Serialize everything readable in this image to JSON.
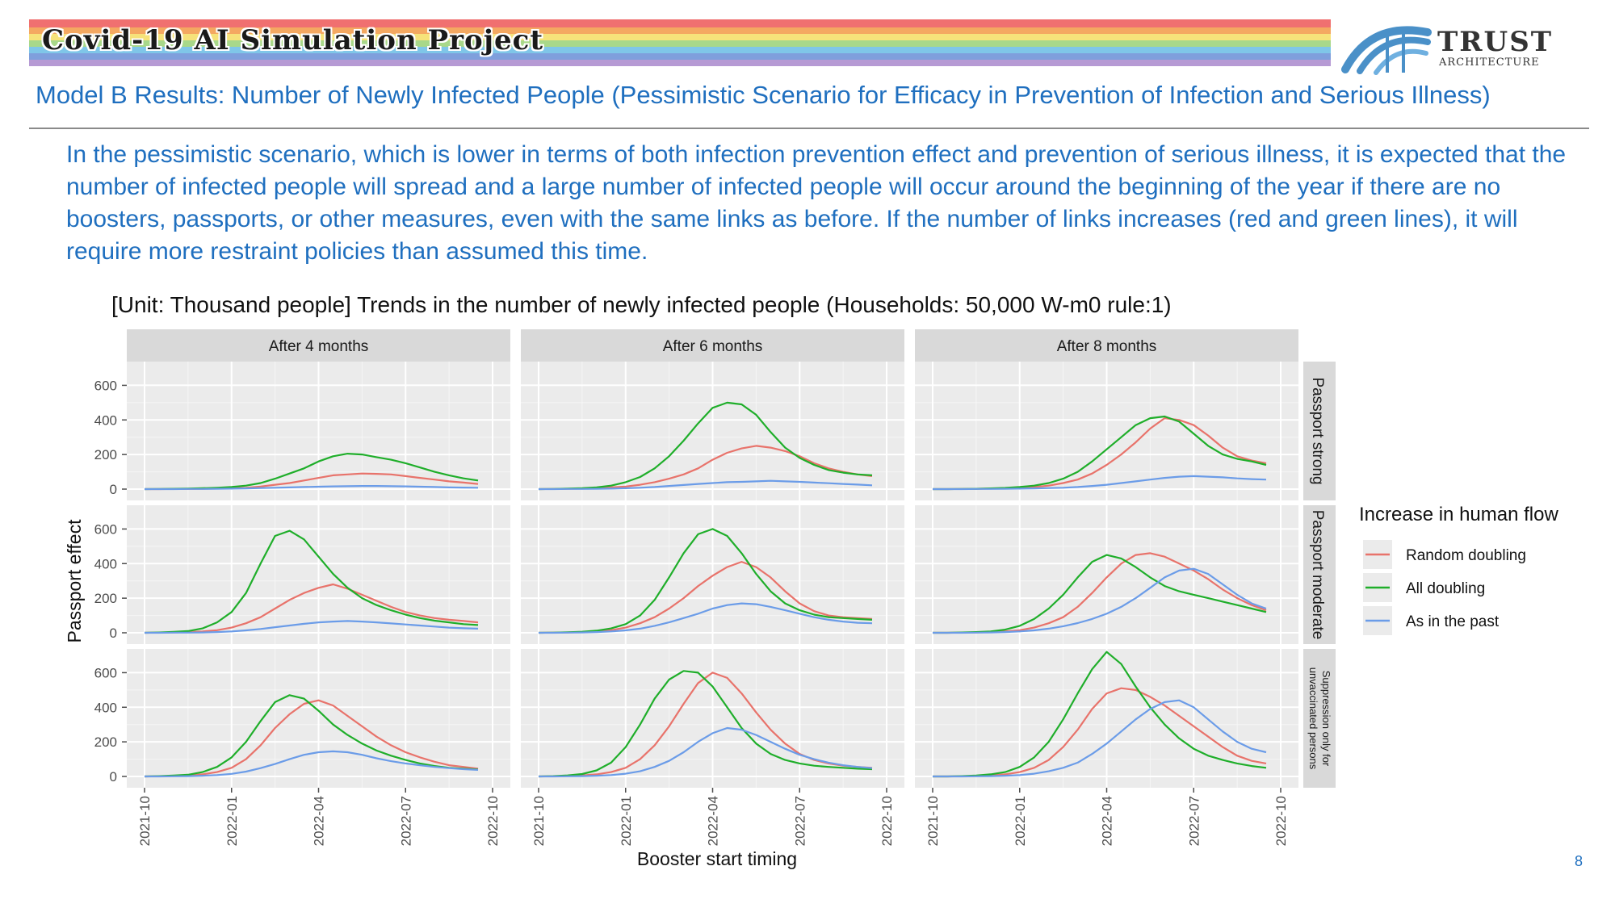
{
  "banner": {
    "title": "Covid-19 AI Simulation Project",
    "stripes": [
      "#f07070",
      "#f4a861",
      "#f6e27a",
      "#a8d88a",
      "#7fc6e8",
      "#7f9fdc",
      "#b69ad4"
    ]
  },
  "logo": {
    "word": "TRUST",
    "sub": "ARCHITECTURE",
    "icon": "trust-architecture-logo-icon",
    "color": "#4a90c8"
  },
  "slide_title": "Model B Results: Number of Newly Infected People (Pessimistic Scenario for Efficacy in Prevention of Infection and Serious Illness)",
  "body_text": "In the pessimistic scenario, which is lower in terms of both infection prevention effect and prevention of serious illness, it is expected that the number of infected people will spread and a large number of infected people will occur around the beginning of the year if there are no boosters, passports, or other measures, even with the same links as before. If the number of links increases (red and green lines), it will require more restraint policies than assumed this time.",
  "page_number": "8",
  "chart_data": {
    "type": "line",
    "title": "[Unit: Thousand people] Trends in the number of newly infected people (Households: 50,000 W-m0 rule:1)",
    "xlabel": "Booster start timing",
    "ylabel": "Passport effect",
    "xlim": [
      "2021-10",
      "2022-10"
    ],
    "ylim": [
      0,
      700
    ],
    "x_ticks": [
      "2021-10",
      "2022-01",
      "2022-04",
      "2022-07",
      "2022-10"
    ],
    "y_ticks": [
      0,
      200,
      400,
      600
    ],
    "column_facets": [
      "After 4 months",
      "After 6 months",
      "After 8 months"
    ],
    "row_facets": [
      "Passport strong",
      "Passport moderate",
      "Suppression only for unvaccinated persons"
    ],
    "legend": {
      "title": "Increase in human flow",
      "position": "right",
      "items": [
        {
          "name": "Random doubling",
          "color": "#e8736b"
        },
        {
          "name": "All doubling",
          "color": "#1fae2a"
        },
        {
          "name": "As in the past",
          "color": "#6b9ce8"
        }
      ]
    },
    "grid": true,
    "x_months": [
      0,
      0.5,
      1,
      1.5,
      2,
      2.5,
      3,
      3.5,
      4,
      4.5,
      5,
      5.5,
      6,
      6.5,
      7,
      7.5,
      8,
      8.5,
      9,
      9.5,
      10,
      10.5,
      11,
      11.5
    ],
    "x_month_origin": "2021-10",
    "panels": [
      [
        {
          "series": [
            [
              0,
              0,
              1,
              1,
              2,
              3,
              5,
              8,
              15,
              25,
              35,
              50,
              65,
              80,
              85,
              90,
              88,
              85,
              75,
              65,
              55,
              45,
              38,
              30
            ],
            [
              0,
              1,
              2,
              3,
              5,
              8,
              12,
              20,
              35,
              60,
              90,
              120,
              160,
              190,
              205,
              200,
              185,
              170,
              150,
              125,
              100,
              80,
              62,
              50
            ],
            [
              0,
              0,
              0,
              1,
              1,
              2,
              3,
              4,
              6,
              8,
              10,
              12,
              14,
              16,
              17,
              18,
              18,
              17,
              16,
              14,
              12,
              10,
              9,
              8
            ]
          ]
        },
        {
          "series": [
            [
              0,
              1,
              2,
              3,
              5,
              10,
              15,
              25,
              40,
              60,
              85,
              120,
              170,
              210,
              235,
              250,
              240,
              220,
              190,
              150,
              120,
              100,
              85,
              75
            ],
            [
              0,
              1,
              3,
              5,
              10,
              20,
              40,
              70,
              120,
              190,
              280,
              380,
              470,
              500,
              490,
              430,
              330,
              240,
              180,
              140,
              110,
              95,
              85,
              80
            ],
            [
              0,
              0,
              1,
              1,
              2,
              3,
              5,
              8,
              12,
              18,
              24,
              30,
              35,
              40,
              42,
              45,
              48,
              45,
              42,
              38,
              34,
              30,
              26,
              22
            ]
          ]
        },
        {
          "series": [
            [
              0,
              0,
              1,
              2,
              3,
              5,
              8,
              12,
              20,
              35,
              55,
              90,
              140,
              200,
              270,
              350,
              410,
              400,
              370,
              310,
              240,
              190,
              165,
              150
            ],
            [
              0,
              0,
              1,
              2,
              4,
              7,
              12,
              20,
              35,
              60,
              100,
              160,
              230,
              300,
              370,
              410,
              420,
              390,
              320,
              250,
              200,
              175,
              160,
              140
            ],
            [
              0,
              0,
              0,
              1,
              1,
              2,
              3,
              4,
              6,
              8,
              12,
              18,
              25,
              35,
              45,
              55,
              65,
              72,
              75,
              72,
              68,
              62,
              58,
              55
            ]
          ]
        }
      ],
      [
        {
          "series": [
            [
              0,
              1,
              2,
              4,
              8,
              15,
              30,
              55,
              90,
              140,
              190,
              230,
              260,
              280,
              255,
              220,
              185,
              150,
              120,
              100,
              85,
              75,
              68,
              60
            ],
            [
              0,
              2,
              5,
              10,
              25,
              60,
              120,
              230,
              400,
              560,
              590,
              540,
              440,
              340,
              260,
              200,
              160,
              130,
              105,
              85,
              70,
              60,
              50,
              45
            ],
            [
              0,
              0,
              1,
              1,
              2,
              4,
              8,
              14,
              22,
              32,
              42,
              52,
              60,
              65,
              68,
              65,
              60,
              54,
              48,
              42,
              36,
              30,
              26,
              24
            ]
          ]
        },
        {
          "series": [
            [
              0,
              1,
              2,
              4,
              8,
              15,
              30,
              55,
              90,
              140,
              200,
              270,
              330,
              380,
              410,
              380,
              320,
              240,
              170,
              125,
              100,
              90,
              85,
              80
            ],
            [
              0,
              1,
              3,
              6,
              12,
              25,
              50,
              100,
              190,
              320,
              460,
              570,
              600,
              560,
              460,
              340,
              240,
              170,
              130,
              105,
              90,
              85,
              80,
              75
            ],
            [
              0,
              0,
              1,
              2,
              4,
              8,
              14,
              24,
              40,
              60,
              85,
              110,
              140,
              160,
              170,
              165,
              150,
              130,
              110,
              90,
              75,
              65,
              58,
              55
            ]
          ]
        },
        {
          "series": [
            [
              0,
              0,
              1,
              2,
              4,
              8,
              15,
              30,
              55,
              90,
              150,
              230,
              320,
              400,
              450,
              460,
              440,
              400,
              360,
              310,
              250,
              200,
              160,
              130
            ],
            [
              0,
              0,
              2,
              4,
              8,
              18,
              40,
              80,
              140,
              220,
              320,
              410,
              450,
              430,
              380,
              320,
              270,
              240,
              220,
              200,
              180,
              160,
              140,
              120
            ],
            [
              0,
              0,
              0,
              1,
              2,
              4,
              8,
              14,
              24,
              38,
              56,
              80,
              110,
              150,
              200,
              260,
              320,
              360,
              370,
              340,
              280,
              220,
              170,
              140
            ]
          ]
        }
      ],
      [
        {
          "series": [
            [
              0,
              1,
              3,
              6,
              12,
              25,
              50,
              100,
              180,
              280,
              360,
              420,
              440,
              410,
              350,
              290,
              230,
              180,
              140,
              110,
              85,
              65,
              55,
              45
            ],
            [
              0,
              2,
              5,
              10,
              25,
              55,
              110,
              200,
              320,
              430,
              470,
              450,
              380,
              300,
              240,
              190,
              150,
              120,
              95,
              75,
              60,
              50,
              45,
              40
            ],
            [
              0,
              0,
              1,
              2,
              4,
              8,
              15,
              28,
              48,
              72,
              100,
              125,
              140,
              145,
              140,
              125,
              105,
              88,
              75,
              65,
              55,
              48,
              42,
              38
            ]
          ]
        },
        {
          "series": [
            [
              0,
              1,
              3,
              6,
              12,
              25,
              50,
              100,
              180,
              290,
              420,
              540,
              600,
              570,
              480,
              370,
              270,
              190,
              130,
              95,
              75,
              62,
              55,
              50
            ],
            [
              0,
              2,
              6,
              14,
              35,
              80,
              170,
              300,
              450,
              560,
              610,
              600,
              520,
              400,
              280,
              190,
              130,
              95,
              75,
              62,
              55,
              50,
              45,
              42
            ],
            [
              0,
              0,
              1,
              2,
              4,
              8,
              16,
              30,
              55,
              90,
              140,
              200,
              250,
              280,
              270,
              240,
              200,
              160,
              125,
              100,
              80,
              65,
              55,
              48
            ]
          ]
        },
        {
          "series": [
            [
              0,
              0,
              1,
              3,
              6,
              12,
              25,
              50,
              95,
              170,
              270,
              390,
              480,
              510,
              500,
              460,
              410,
              350,
              290,
              230,
              170,
              120,
              90,
              75
            ],
            [
              0,
              0,
              2,
              5,
              12,
              25,
              55,
              110,
              200,
              330,
              480,
              620,
              720,
              650,
              520,
              400,
              300,
              220,
              160,
              120,
              95,
              75,
              60,
              50
            ],
            [
              0,
              0,
              0,
              1,
              2,
              4,
              8,
              16,
              30,
              50,
              80,
              130,
              190,
              260,
              330,
              390,
              430,
              440,
              400,
              330,
              260,
              200,
              160,
              140
            ]
          ]
        }
      ]
    ]
  }
}
